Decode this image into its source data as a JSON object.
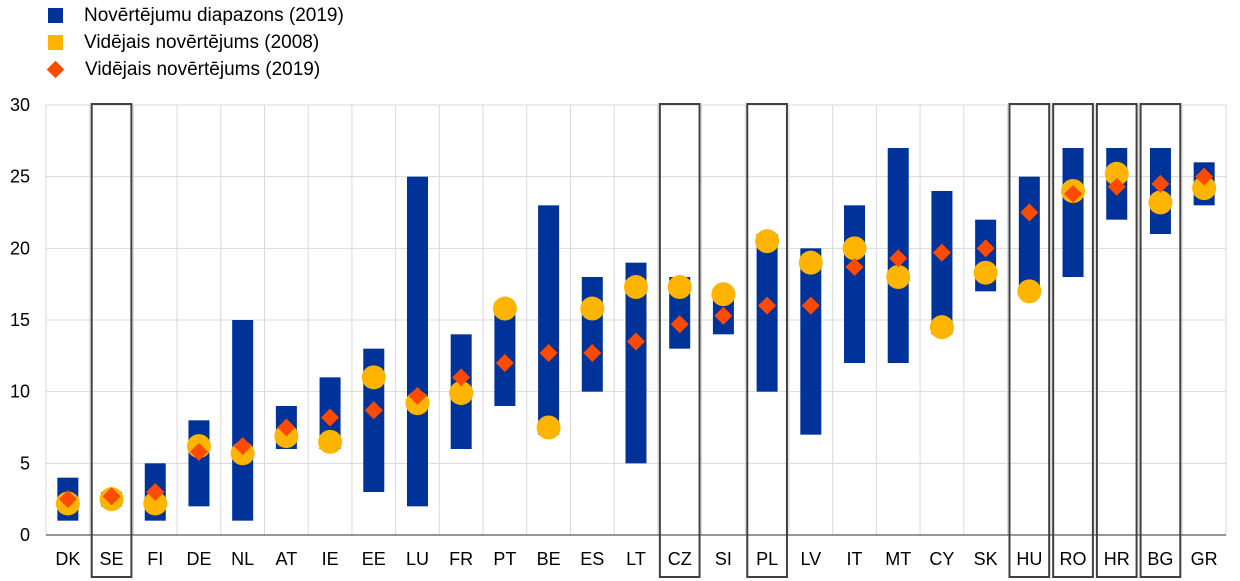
{
  "colors": {
    "range": "#003399",
    "avg2008": "#FFB400",
    "avg2019": "#FF4B00",
    "grid": "#D9D9D9",
    "axis": "#595959",
    "box": "#404040"
  },
  "legend": {
    "range_label": "Novērtējumu diapazons (2019)",
    "avg2008_label": "Vidējais novērtējums (2008)",
    "avg2019_label": "Vidējais novērtējums (2019)"
  },
  "chart_data": {
    "type": "bar",
    "ylim": [
      0,
      30
    ],
    "yticks": [
      0,
      5,
      10,
      15,
      20,
      25,
      30
    ],
    "grid": true,
    "legend_position": "top-left",
    "categories": [
      "DK",
      "SE",
      "FI",
      "DE",
      "NL",
      "AT",
      "IE",
      "EE",
      "LU",
      "FR",
      "PT",
      "BE",
      "ES",
      "LT",
      "CZ",
      "SI",
      "PL",
      "LV",
      "IT",
      "MT",
      "CY",
      "SK",
      "HU",
      "RO",
      "HR",
      "BG",
      "GR"
    ],
    "highlighted": [
      "SE",
      "CZ",
      "PL",
      "HU",
      "RO",
      "HR",
      "BG"
    ],
    "series": [
      {
        "name": "Novērtējumu diapazons (2019)",
        "kind": "range",
        "low": [
          1,
          2,
          1,
          2,
          1,
          6,
          6,
          3,
          2,
          6,
          9,
          7,
          10,
          5,
          13,
          14,
          10,
          7,
          12,
          12,
          14,
          17,
          17,
          18,
          22,
          21,
          23
        ],
        "high": [
          4,
          3,
          5,
          8,
          15,
          9,
          11,
          13,
          25,
          14,
          16,
          23,
          18,
          19,
          18,
          17,
          21,
          20,
          23,
          27,
          24,
          22,
          25,
          27,
          27,
          27,
          26
        ]
      },
      {
        "name": "Vidējais novērtējums (2008)",
        "kind": "circle",
        "values": [
          2.2,
          2.5,
          2.2,
          6.2,
          5.7,
          6.9,
          6.5,
          11.0,
          9.2,
          9.9,
          15.8,
          7.5,
          15.8,
          17.3,
          17.3,
          16.8,
          20.5,
          19.0,
          20.0,
          18.0,
          14.5,
          18.3,
          17.0,
          24.0,
          25.2,
          23.2,
          24.2
        ]
      },
      {
        "name": "Vidējais novērtējums (2019)",
        "kind": "diamond",
        "values": [
          2.5,
          2.7,
          3.0,
          5.8,
          6.2,
          7.5,
          8.2,
          8.7,
          9.7,
          11.0,
          12.0,
          12.7,
          12.7,
          13.5,
          14.7,
          15.3,
          16.0,
          16.0,
          18.7,
          19.3,
          19.7,
          20.0,
          22.5,
          23.8,
          24.3,
          24.5,
          25.0
        ]
      }
    ]
  }
}
